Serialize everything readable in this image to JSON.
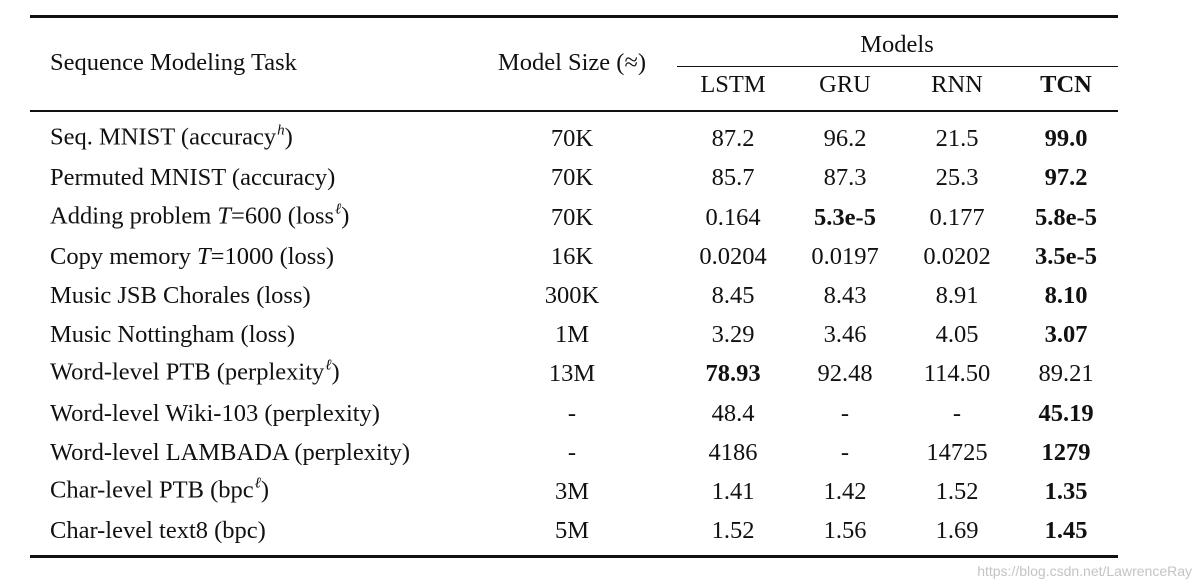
{
  "header": {
    "task_col": "Sequence Modeling Task",
    "size_col": "Model Size (≈)",
    "models_group": "Models",
    "models": [
      "LSTM",
      "GRU",
      "RNN",
      "TCN"
    ]
  },
  "rows": [
    {
      "task": "Seq. MNIST (accuracy",
      "task_sup": "h",
      "task_close": ")",
      "size": "70K",
      "lstm": "87.2",
      "gru": "96.2",
      "rnn": "21.5",
      "tcn": "99.0"
    },
    {
      "task": "Permuted MNIST (accuracy)",
      "size": "70K",
      "lstm": "85.7",
      "gru": "87.3",
      "rnn": "25.3",
      "tcn": "97.2"
    },
    {
      "task_pre": "Adding problem ",
      "task_var": "T",
      "task_post": "=600 (loss",
      "task_sup": "ℓ",
      "task_close": ")",
      "size": "70K",
      "lstm": "0.164",
      "gru": "5.3e-5",
      "rnn": "0.177",
      "tcn": "5.8e-5"
    },
    {
      "task_pre": "Copy memory ",
      "task_var": "T",
      "task_post": "=1000 (loss)",
      "size": "16K",
      "lstm": "0.0204",
      "gru": "0.0197",
      "rnn": "0.0202",
      "tcn": "3.5e-5"
    },
    {
      "task": "Music JSB Chorales (loss)",
      "size": "300K",
      "lstm": "8.45",
      "gru": "8.43",
      "rnn": "8.91",
      "tcn": "8.10"
    },
    {
      "task": "Music Nottingham (loss)",
      "size": "1M",
      "lstm": "3.29",
      "gru": "3.46",
      "rnn": "4.05",
      "tcn": "3.07"
    },
    {
      "task": "Word-level PTB (perplexity",
      "task_sup": "ℓ",
      "task_close": ")",
      "size": "13M",
      "lstm": "78.93",
      "gru": "92.48",
      "rnn": "114.50",
      "tcn": "89.21"
    },
    {
      "task": "Word-level Wiki-103 (perplexity)",
      "size": "-",
      "lstm": "48.4",
      "gru": "-",
      "rnn": "-",
      "tcn": "45.19"
    },
    {
      "task": "Word-level LAMBADA (perplexity)",
      "size": "-",
      "lstm": "4186",
      "gru": "-",
      "rnn": "14725",
      "tcn": "1279"
    },
    {
      "task": "Char-level PTB (bpc",
      "task_sup": "ℓ",
      "task_close": ")",
      "size": "3M",
      "lstm": "1.41",
      "gru": "1.42",
      "rnn": "1.52",
      "tcn": "1.35"
    },
    {
      "task": "Char-level text8 (bpc)",
      "size": "5M",
      "lstm": "1.52",
      "gru": "1.56",
      "rnn": "1.69",
      "tcn": "1.45"
    }
  ],
  "watermark": "https://blog.csdn.net/LawrenceRay"
}
